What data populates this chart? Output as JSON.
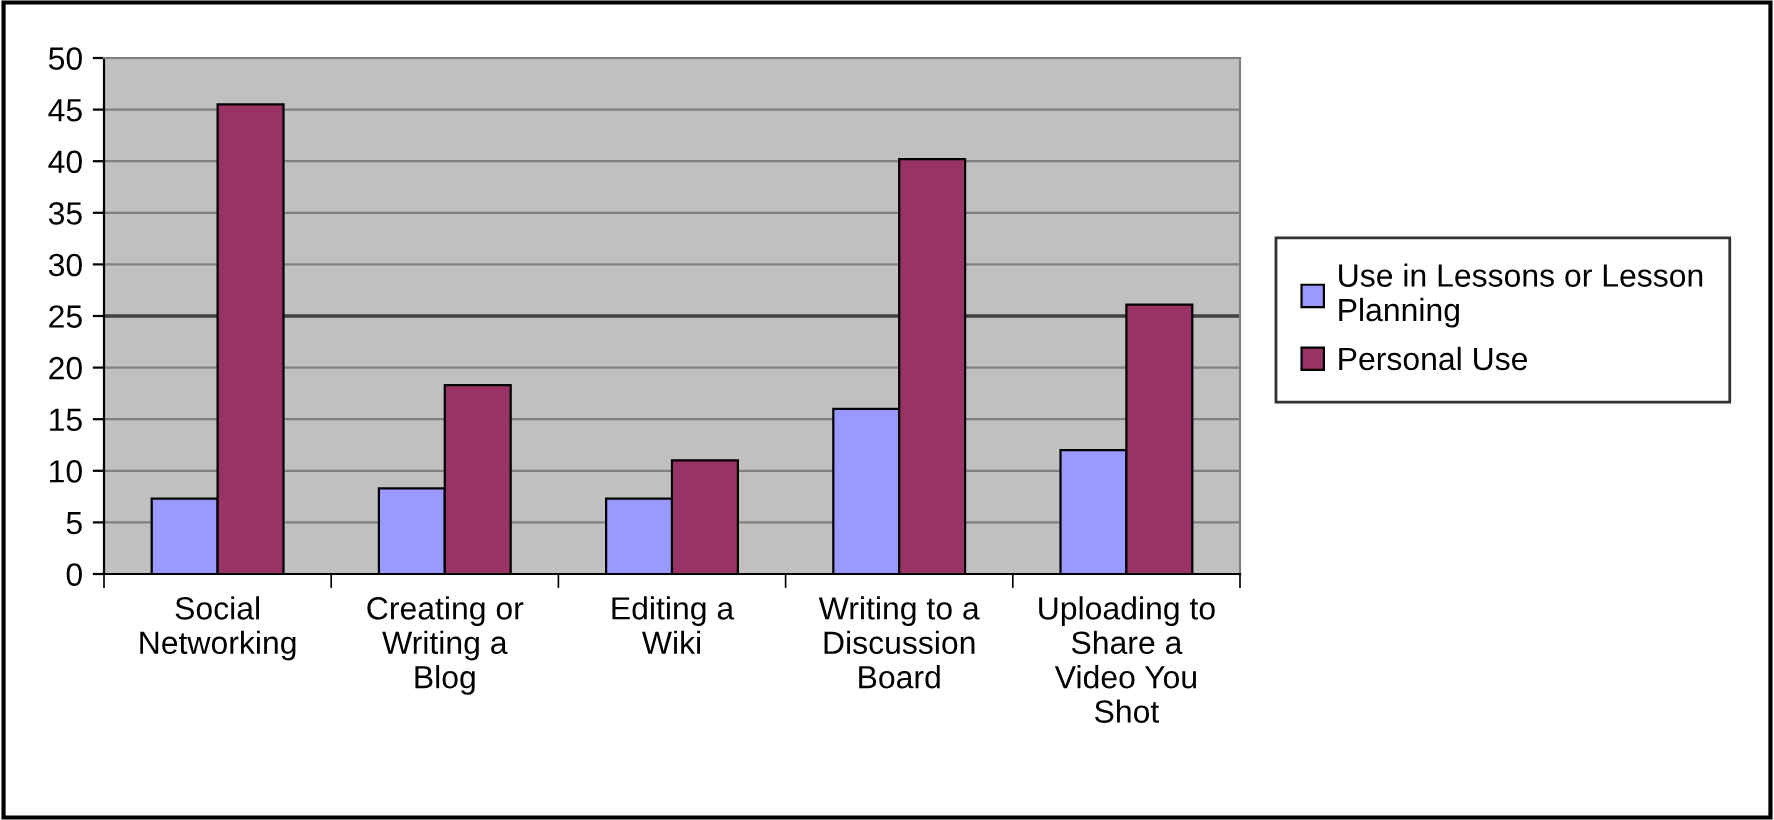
{
  "chart_data": {
    "type": "bar",
    "categories": [
      "Social\nNetworking",
      "Creating or\nWriting a\nBlog",
      "Editing a\nWiki",
      "Writing to a\nDiscussion\nBoard",
      "Uploading to\nShare a\nVideo You\nShot"
    ],
    "series": [
      {
        "name": "Use in Lessons or Lesson\nPlanning",
        "color": "#9999ff",
        "values": [
          7.3,
          8.3,
          7.3,
          16,
          12
        ]
      },
      {
        "name": "Personal Use",
        "color": "#993366",
        "values": [
          45.5,
          18.3,
          11,
          40.2,
          26.1
        ]
      }
    ],
    "ylim": [
      0,
      50
    ],
    "yticks": [
      0,
      5,
      10,
      15,
      20,
      25,
      30,
      35,
      40,
      45,
      50
    ],
    "grid": "y",
    "legend": "right",
    "ref_lines": [
      {
        "axis": "y",
        "value": 25,
        "color": "#404040"
      }
    ]
  }
}
